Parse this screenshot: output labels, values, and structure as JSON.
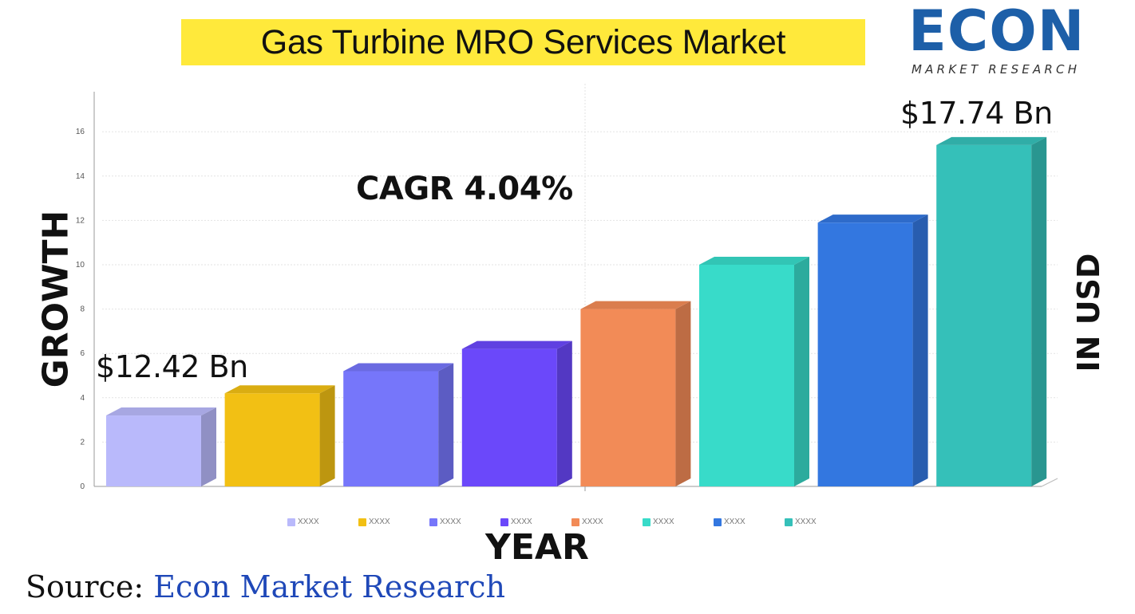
{
  "title": "Gas Turbine MRO Services Market",
  "logo": {
    "word": "ECON",
    "tagline": "MARKET RESEARCH",
    "brand_color": "#1d5fa8"
  },
  "y_axis_title": "GROWTH",
  "right_axis_title": "IN USD",
  "x_axis_title": "YEAR",
  "cagr_label": "CAGR 4.04%",
  "annotations": {
    "first": "$12.42 Bn",
    "last": "$17.74 Bn"
  },
  "source": {
    "prefix": "Source: ",
    "org": "Econ Market Research"
  },
  "chart_data": {
    "type": "bar",
    "categories": [
      "XXXX",
      "XXXX",
      "XXXX",
      "XXXX",
      "XXXX",
      "XXXX",
      "XXXX",
      "XXXX"
    ],
    "values": [
      3.2,
      4.2,
      5.2,
      6.2,
      8.0,
      10.0,
      11.9,
      15.4
    ],
    "colors": [
      "#b9b9fb",
      "#f2c014",
      "#7676fa",
      "#6b48fa",
      "#f28b57",
      "#38dbc9",
      "#3377e0",
      "#35c0b9"
    ],
    "ylim": [
      0,
      17.5
    ],
    "yticks": [
      0,
      2,
      4,
      6,
      8,
      10,
      12,
      14,
      16
    ],
    "grid": true,
    "legend": "bottom"
  }
}
